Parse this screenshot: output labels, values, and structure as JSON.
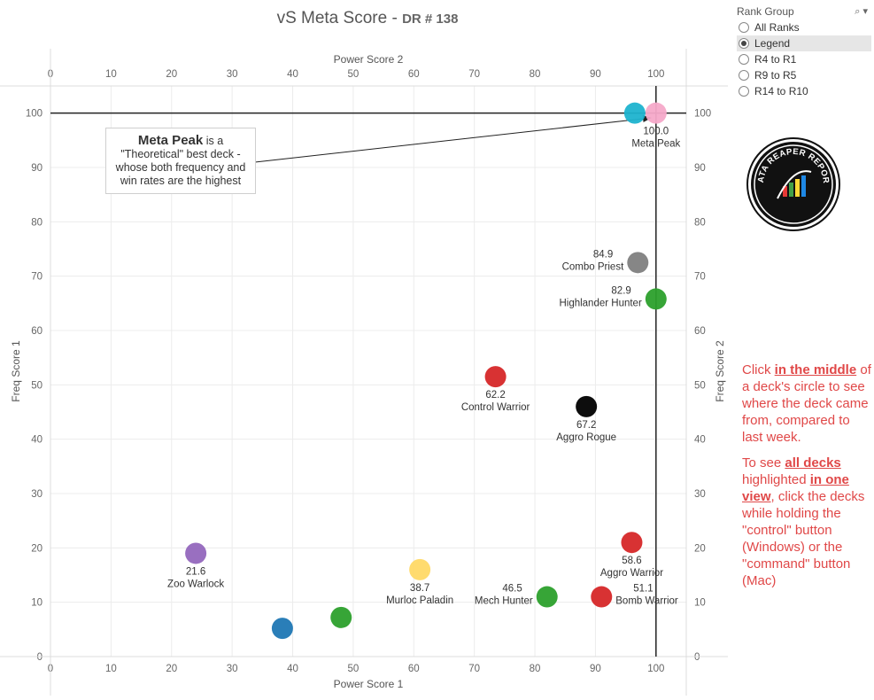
{
  "header": {
    "title": "vS Meta Score - ",
    "subtitle": "DR # 138"
  },
  "rank_group": {
    "label": "Rank Group",
    "options": [
      "All Ranks",
      "Legend",
      "R4 to R1",
      "R9 to R5",
      "R14 to R10"
    ],
    "selected": "Legend"
  },
  "annotation": {
    "bold": "Meta Peak",
    "rest_1": " is a",
    "rest_2": "\"Theoretical\" best deck -",
    "rest_3": "whose both frequency and",
    "rest_4": "win rates are the highest"
  },
  "instructions": {
    "p1_a": "Click ",
    "p1_b": "in the middle",
    "p1_c": " of a deck's circle to see where the deck came from, compared to last week.",
    "p2_a": "To see ",
    "p2_b": "all decks ",
    "p2_c": "highlighted ",
    "p2_d": "in one view",
    "p2_e": ", click the decks while holding the \"control\" button (Windows) or the \"command\" button (Mac)"
  },
  "logo": {
    "text": "DATA REAPER REPORT"
  },
  "colors": {
    "accent_red": "#e04848",
    "grid": "#ebebeb"
  },
  "chart_data": {
    "type": "scatter",
    "title": "vS Meta Score - DR # 138",
    "xlabel": "Power Score 1",
    "ylabel": "Freq Score 1",
    "x2label": "Power Score 2",
    "y2label": "Freq Score 2",
    "xlim": [
      0,
      105
    ],
    "ylim": [
      0,
      105
    ],
    "xticks": [
      0,
      10,
      20,
      30,
      40,
      50,
      60,
      70,
      80,
      90,
      100
    ],
    "yticks": [
      0,
      10,
      20,
      30,
      40,
      50,
      60,
      70,
      80,
      90,
      100
    ],
    "grid": true,
    "reference_lines": {
      "x": 100,
      "y": 100
    },
    "points": [
      {
        "name": "Meta Peak",
        "score": "100.0",
        "x": 100,
        "y": 100,
        "color": "#f5a9c9",
        "label_pos": "below"
      },
      {
        "name": "",
        "score": "",
        "x": 96.5,
        "y": 100,
        "color": "#1db3cf",
        "label_pos": "none"
      },
      {
        "name": "Combo Priest",
        "score": "84.9",
        "x": 97,
        "y": 72.5,
        "color": "#808080",
        "label_pos": "left"
      },
      {
        "name": "Highlander Hunter",
        "score": "82.9",
        "x": 100,
        "y": 65.8,
        "color": "#2ca02c",
        "label_pos": "left"
      },
      {
        "name": "Control Warrior",
        "score": "62.2",
        "x": 73.5,
        "y": 51.5,
        "color": "#d62728",
        "label_pos": "below"
      },
      {
        "name": "Aggro Rogue",
        "score": "67.2",
        "x": 88.5,
        "y": 46,
        "color": "#000000",
        "label_pos": "below"
      },
      {
        "name": "Zoo Warlock",
        "score": "21.6",
        "x": 24,
        "y": 19,
        "color": "#9467bd",
        "label_pos": "below"
      },
      {
        "name": "Aggro Warrior",
        "score": "58.6",
        "x": 96,
        "y": 21,
        "color": "#d62728",
        "label_pos": "below"
      },
      {
        "name": "Murloc Paladin",
        "score": "38.7",
        "x": 61,
        "y": 16,
        "color": "#ffd966",
        "label_pos": "below"
      },
      {
        "name": "Mech Hunter",
        "score": "46.5",
        "x": 82,
        "y": 11,
        "color": "#2ca02c",
        "label_pos": "left"
      },
      {
        "name": "Bomb Warrior",
        "score": "51.1",
        "x": 91,
        "y": 11,
        "color": "#d62728",
        "label_pos": "right"
      },
      {
        "name": "",
        "score": "",
        "x": 48,
        "y": 7.2,
        "color": "#2ca02c",
        "label_pos": "none"
      },
      {
        "name": "",
        "score": "",
        "x": 38.3,
        "y": 5.2,
        "color": "#1f77b4",
        "label_pos": "none"
      }
    ]
  }
}
